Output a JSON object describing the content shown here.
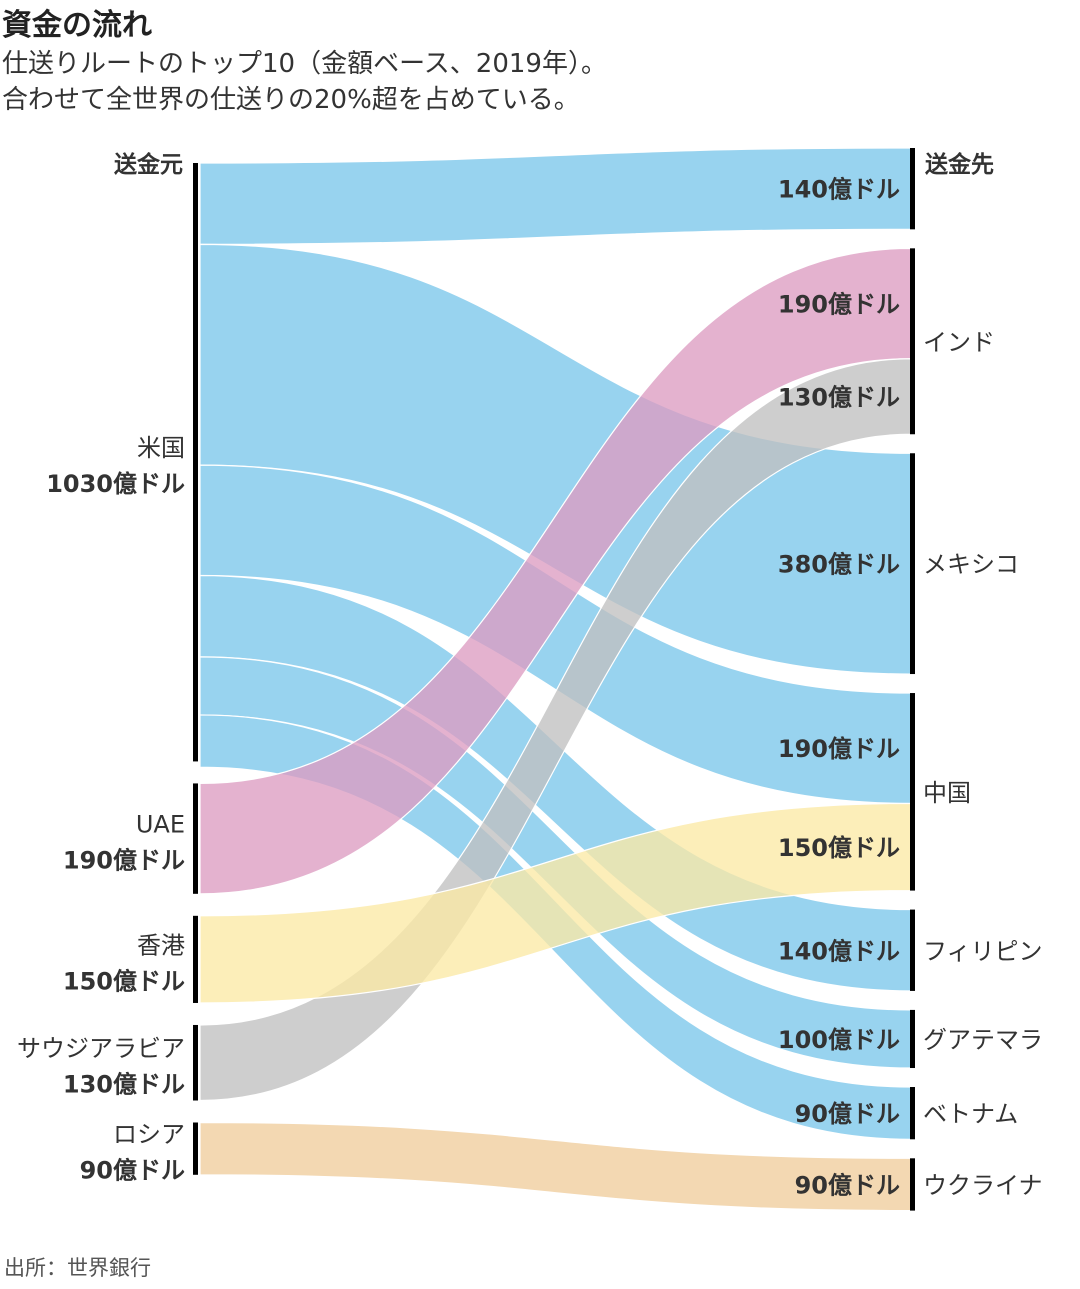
{
  "title": "資金の流れ",
  "subtitle_lines": [
    "仕送りルートのトップ10（金額ベース、2019年）。",
    "合わせて全世界の仕送りの20%超を占めている。"
  ],
  "source": "出所：世界銀行",
  "colors": {
    "米国": "#8fcfee",
    "UAE": "#dc9cc2",
    "香港": "#fbe9a5",
    "サウジアラビア": "#c0c0c0",
    "ロシア": "#efcd9c",
    "bar": "#000000"
  },
  "chart_data": {
    "type": "sankey",
    "unit": "億ドル",
    "left_header": "送金元",
    "right_header": "送金先",
    "sources": [
      {
        "name": "米国",
        "label": "1030億ドル",
        "value": 1030
      },
      {
        "name": "UAE",
        "label": "190億ドル",
        "value": 190
      },
      {
        "name": "香港",
        "label": "150億ドル",
        "value": 150
      },
      {
        "name": "サウジアラビア",
        "label": "130億ドル",
        "value": 130
      },
      {
        "name": "ロシア",
        "label": "90億ドル",
        "value": 90
      }
    ],
    "targets": [
      {
        "name": "",
        "value": 140
      },
      {
        "name": "インド",
        "value": 320
      },
      {
        "name": "メキシコ",
        "value": 380
      },
      {
        "name": "中国",
        "value": 340
      },
      {
        "name": "フィリピン",
        "value": 140
      },
      {
        "name": "グアテマラ",
        "value": 100
      },
      {
        "name": "ベトナム",
        "value": 90
      },
      {
        "name": "ウクライナ",
        "value": 90
      }
    ],
    "flows": [
      {
        "source": "米国",
        "target": 0,
        "value": 140,
        "label": "140億ドル"
      },
      {
        "source": "UAE",
        "target": 1,
        "value": 190,
        "label": "190億ドル"
      },
      {
        "source": "サウジアラビア",
        "target": 1,
        "value": 130,
        "label": "130億ドル"
      },
      {
        "source": "米国",
        "target": 2,
        "value": 380,
        "label": "380億ドル"
      },
      {
        "source": "米国",
        "target": 3,
        "value": 190,
        "label": "190億ドル"
      },
      {
        "source": "香港",
        "target": 3,
        "value": 150,
        "label": "150億ドル"
      },
      {
        "source": "米国",
        "target": 4,
        "value": 140,
        "label": "140億ドル"
      },
      {
        "source": "米国",
        "target": 5,
        "value": 100,
        "label": "100億ドル"
      },
      {
        "source": "米国",
        "target": 6,
        "value": 90,
        "label": "90億ドル"
      },
      {
        "source": "ロシア",
        "target": 7,
        "value": 90,
        "label": "90億ドル"
      }
    ]
  }
}
